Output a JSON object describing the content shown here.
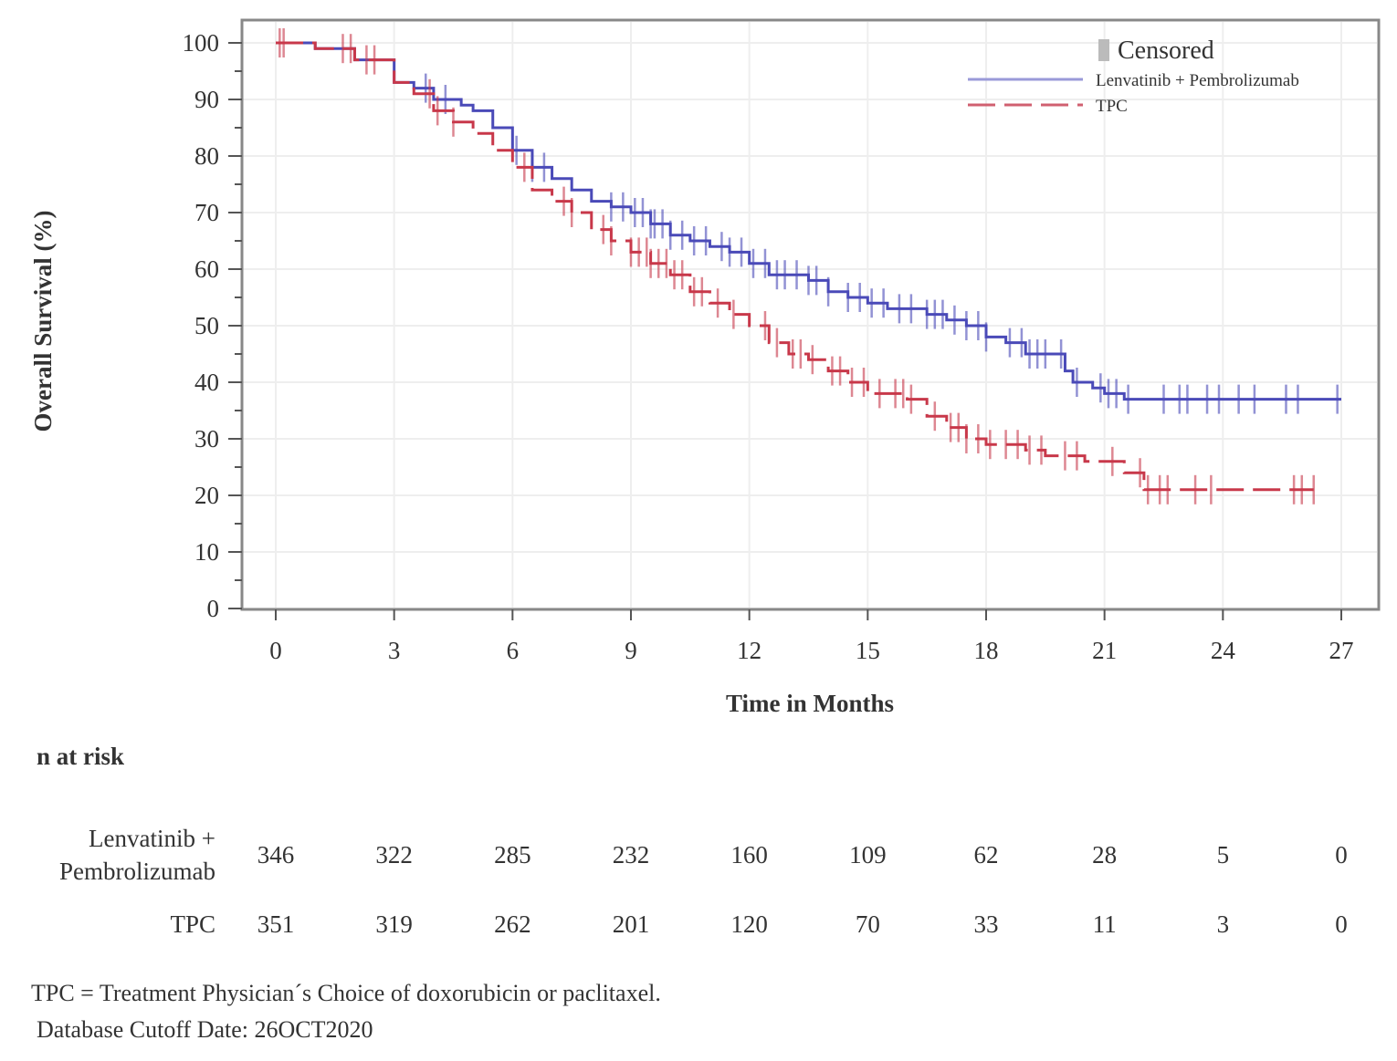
{
  "chart_data": {
    "type": "line",
    "subtype": "kaplan-meier",
    "xlabel": "Time in Months",
    "ylabel": "Overall Survival (%)",
    "xlim": [
      0,
      27
    ],
    "ylim": [
      0,
      100
    ],
    "xticks": [
      0,
      3,
      6,
      9,
      12,
      15,
      18,
      21,
      24,
      27
    ],
    "yticks": [
      0,
      10,
      20,
      30,
      40,
      50,
      60,
      70,
      80,
      90,
      100
    ],
    "grid": true,
    "legend": {
      "placement": "top-right",
      "censored_label": "Censored",
      "entries": [
        "Lenvatinib + Pembrolizumab",
        "TPC"
      ]
    },
    "series": [
      {
        "name": "Lenvatinib + Pembrolizumab",
        "color": "#4a4ab8",
        "style": "solid",
        "steps": [
          [
            0,
            100
          ],
          [
            0.8,
            100
          ],
          [
            1,
            99
          ],
          [
            2,
            97
          ],
          [
            3,
            93
          ],
          [
            3.5,
            92
          ],
          [
            4,
            90
          ],
          [
            4.7,
            89
          ],
          [
            5,
            88
          ],
          [
            5.5,
            85
          ],
          [
            6,
            81
          ],
          [
            6.5,
            78
          ],
          [
            7,
            76
          ],
          [
            7.5,
            74
          ],
          [
            8,
            72
          ],
          [
            8.5,
            71
          ],
          [
            9,
            70
          ],
          [
            9.5,
            68
          ],
          [
            10,
            66
          ],
          [
            10.5,
            65
          ],
          [
            11,
            64
          ],
          [
            11.5,
            63
          ],
          [
            12,
            61
          ],
          [
            12.5,
            59
          ],
          [
            13.5,
            58
          ],
          [
            14,
            56
          ],
          [
            14.5,
            55
          ],
          [
            15,
            54
          ],
          [
            15.5,
            53
          ],
          [
            16.5,
            52
          ],
          [
            17,
            51
          ],
          [
            17.5,
            50
          ],
          [
            18,
            48
          ],
          [
            18.5,
            47
          ],
          [
            19,
            45
          ],
          [
            20,
            42
          ],
          [
            20.2,
            40
          ],
          [
            20.7,
            39
          ],
          [
            21,
            38
          ],
          [
            21.5,
            37
          ],
          [
            27,
            37
          ]
        ],
        "censored": [
          3.8,
          4.3,
          6.1,
          6.5,
          6.8,
          8.5,
          8.8,
          9.1,
          9.3,
          9.5,
          9.6,
          9.8,
          10.0,
          10.3,
          10.6,
          10.9,
          11.3,
          11.5,
          11.8,
          12.1,
          12.4,
          12.7,
          12.9,
          13.2,
          13.5,
          13.7,
          14.0,
          14.5,
          14.8,
          15.1,
          15.4,
          15.8,
          16.1,
          16.5,
          16.7,
          16.9,
          17.2,
          17.5,
          17.8,
          18.0,
          18.6,
          18.9,
          19.1,
          19.3,
          19.5,
          19.9,
          20.3,
          20.9,
          21.1,
          21.3,
          21.6,
          22.5,
          22.9,
          23.1,
          23.6,
          23.9,
          24.4,
          24.8,
          25.6,
          25.9,
          26.9
        ]
      },
      {
        "name": "TPC",
        "color": "#c8384a",
        "style": "dashed",
        "steps": [
          [
            0,
            100
          ],
          [
            1,
            99
          ],
          [
            2,
            97
          ],
          [
            3,
            93
          ],
          [
            3.5,
            91
          ],
          [
            4,
            88
          ],
          [
            4.5,
            86
          ],
          [
            5,
            84
          ],
          [
            5.5,
            81
          ],
          [
            6,
            78
          ],
          [
            6.5,
            74
          ],
          [
            7,
            72
          ],
          [
            7.5,
            70
          ],
          [
            8,
            67
          ],
          [
            8.5,
            65
          ],
          [
            9,
            63
          ],
          [
            9.5,
            61
          ],
          [
            10,
            59
          ],
          [
            10.5,
            56
          ],
          [
            11,
            54
          ],
          [
            11.5,
            52
          ],
          [
            12,
            50
          ],
          [
            12.5,
            47
          ],
          [
            13,
            45
          ],
          [
            13.5,
            44
          ],
          [
            14,
            42
          ],
          [
            14.5,
            40
          ],
          [
            15,
            38
          ],
          [
            16,
            37
          ],
          [
            16.5,
            34
          ],
          [
            17,
            32
          ],
          [
            17.5,
            30
          ],
          [
            18,
            29
          ],
          [
            19,
            28
          ],
          [
            19.5,
            27
          ],
          [
            20.5,
            26
          ],
          [
            21.5,
            24
          ],
          [
            22,
            21
          ],
          [
            26.3,
            21
          ]
        ],
        "censored": [
          0.1,
          0.2,
          1.7,
          1.9,
          2.3,
          2.5,
          3.9,
          4.1,
          4.5,
          6.3,
          7.3,
          7.5,
          8.3,
          8.5,
          9.0,
          9.2,
          9.4,
          9.5,
          9.7,
          9.9,
          10.1,
          10.3,
          10.6,
          10.8,
          11.2,
          11.6,
          12.4,
          12.7,
          13.1,
          13.3,
          13.6,
          14.1,
          14.3,
          14.6,
          14.9,
          15.3,
          15.7,
          15.9,
          16.1,
          16.7,
          17.1,
          17.3,
          17.5,
          17.8,
          18.1,
          18.5,
          18.8,
          19.1,
          19.4,
          20.0,
          20.3,
          21.2,
          21.9,
          22.1,
          22.4,
          22.6,
          23.3,
          23.7,
          25.8,
          26.0,
          26.3
        ]
      }
    ]
  },
  "risk_table": {
    "title": "n at risk",
    "rows": [
      {
        "label_lines": [
          "Lenvatinib +",
          "Pembrolizumab"
        ],
        "values": [
          "346",
          "322",
          "285",
          "232",
          "160",
          "109",
          "62",
          "28",
          "5",
          "0"
        ]
      },
      {
        "label_lines": [
          "TPC"
        ],
        "values": [
          "351",
          "319",
          "262",
          "201",
          "120",
          "70",
          "33",
          "11",
          "3",
          "0"
        ]
      }
    ]
  },
  "footnotes": [
    "TPC = Treatment Physician´s Choice of doxorubicin or paclitaxel.",
    "Database Cutoff Date: 26OCT2020"
  ]
}
